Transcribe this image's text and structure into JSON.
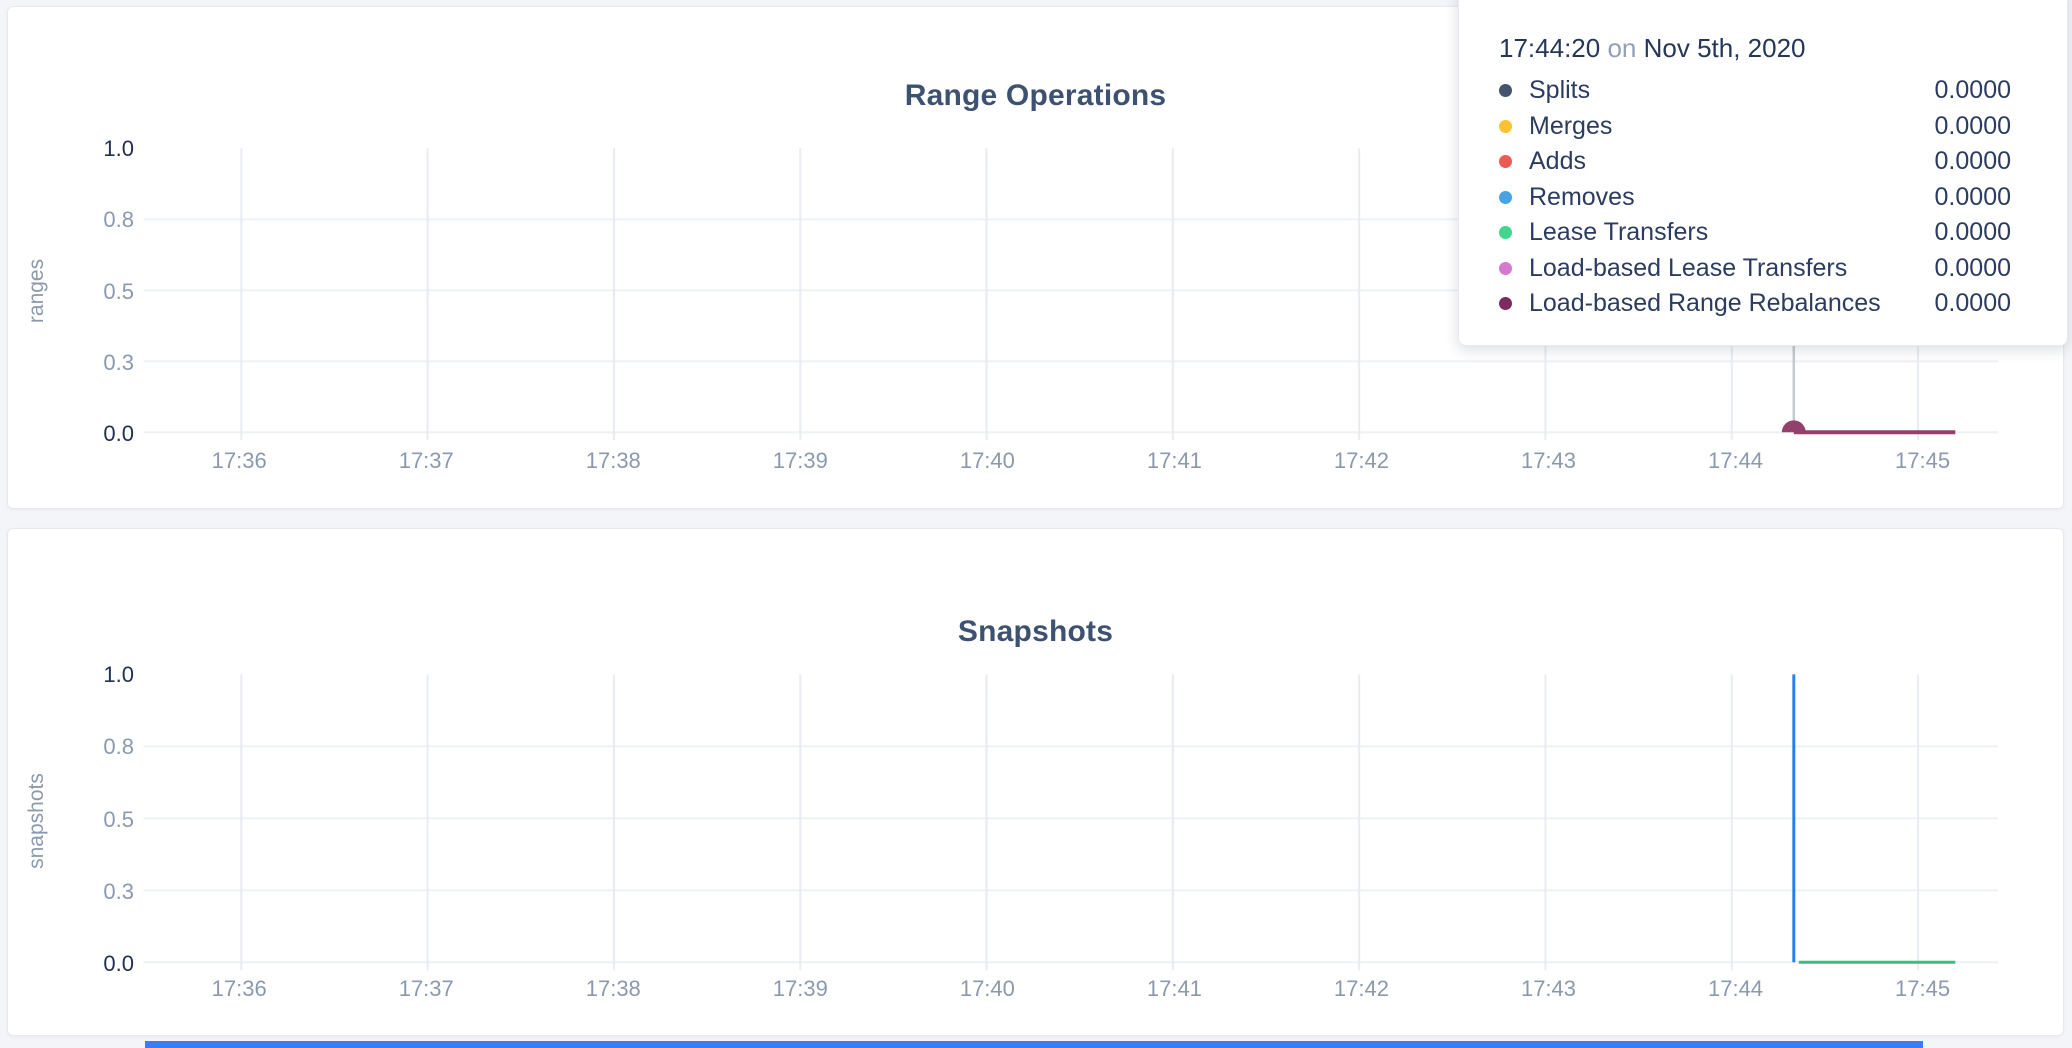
{
  "page": {
    "background": "#f4f5f9",
    "partial_bottom_element_color": "#3b7cf0"
  },
  "tooltip": {
    "time": "17:44:20",
    "connector": "on",
    "date": "Nov 5th, 2020",
    "rows": [
      {
        "label": "Splits",
        "value": "0.0000",
        "color": "#44536e"
      },
      {
        "label": "Merges",
        "value": "0.0000",
        "color": "#fcc22f"
      },
      {
        "label": "Adds",
        "value": "0.0000",
        "color": "#ec5a51"
      },
      {
        "label": "Removes",
        "value": "0.0000",
        "color": "#47a3e6"
      },
      {
        "label": "Lease Transfers",
        "value": "0.0000",
        "color": "#41d68b"
      },
      {
        "label": "Load-based Lease Transfers",
        "value": "0.0000",
        "color": "#d678ce"
      },
      {
        "label": "Load-based Range Rebalances",
        "value": "0.0000",
        "color": "#7c2b5e"
      }
    ]
  },
  "chart_data": [
    {
      "type": "line",
      "title": "Range Operations",
      "ylabel": "ranges",
      "ylim": [
        0,
        1
      ],
      "grid": true,
      "x_domain": [
        -0.525,
        9.43
      ],
      "x_ticks": [
        {
          "m": 0,
          "label": "17:36"
        },
        {
          "m": 1,
          "label": "17:37"
        },
        {
          "m": 2,
          "label": "17:38"
        },
        {
          "m": 3,
          "label": "17:39"
        },
        {
          "m": 4,
          "label": "17:40"
        },
        {
          "m": 5,
          "label": "17:41"
        },
        {
          "m": 6,
          "label": "17:42"
        },
        {
          "m": 7,
          "label": "17:43"
        },
        {
          "m": 8,
          "label": "17:44"
        },
        {
          "m": 9,
          "label": "17:45"
        }
      ],
      "y_ticks": [
        {
          "v": 0,
          "label": "0.0"
        },
        {
          "v": 0.25,
          "label": "0.3"
        },
        {
          "v": 0.5,
          "label": "0.5"
        },
        {
          "v": 0.75,
          "label": "0.8"
        },
        {
          "v": 1,
          "label": "1.0"
        }
      ],
      "hover_m": 8.333,
      "hover_time_label": "17:44:20",
      "series": [
        {
          "name": "Load-based Range Rebalances",
          "color": "#92406c",
          "width": 4,
          "points": [
            [
              8.333,
              0
            ],
            [
              9.2,
              0
            ]
          ],
          "marker": [
            8.333,
            0
          ]
        }
      ]
    },
    {
      "type": "line",
      "title": "Snapshots",
      "ylabel": "snapshots",
      "ylim": [
        0,
        1
      ],
      "grid": true,
      "x_domain": [
        -0.525,
        9.43
      ],
      "x_ticks": [
        {
          "m": 0,
          "label": "17:36"
        },
        {
          "m": 1,
          "label": "17:37"
        },
        {
          "m": 2,
          "label": "17:38"
        },
        {
          "m": 3,
          "label": "17:39"
        },
        {
          "m": 4,
          "label": "17:40"
        },
        {
          "m": 5,
          "label": "17:41"
        },
        {
          "m": 6,
          "label": "17:42"
        },
        {
          "m": 7,
          "label": "17:43"
        },
        {
          "m": 8,
          "label": "17:44"
        },
        {
          "m": 9,
          "label": "17:45"
        }
      ],
      "y_ticks": [
        {
          "v": 0,
          "label": "0.0"
        },
        {
          "v": 0.25,
          "label": "0.3"
        },
        {
          "v": 0.5,
          "label": "0.5"
        },
        {
          "v": 0.75,
          "label": "0.8"
        },
        {
          "v": 1,
          "label": "1.0"
        }
      ],
      "series": [
        {
          "color": "#2580f2",
          "width": 3,
          "points": [
            [
              8.333,
              0
            ],
            [
              8.333,
              1
            ]
          ]
        },
        {
          "color": "#3dbc80",
          "width": 3,
          "points": [
            [
              8.36,
              0
            ],
            [
              9.2,
              0
            ]
          ]
        }
      ]
    }
  ]
}
